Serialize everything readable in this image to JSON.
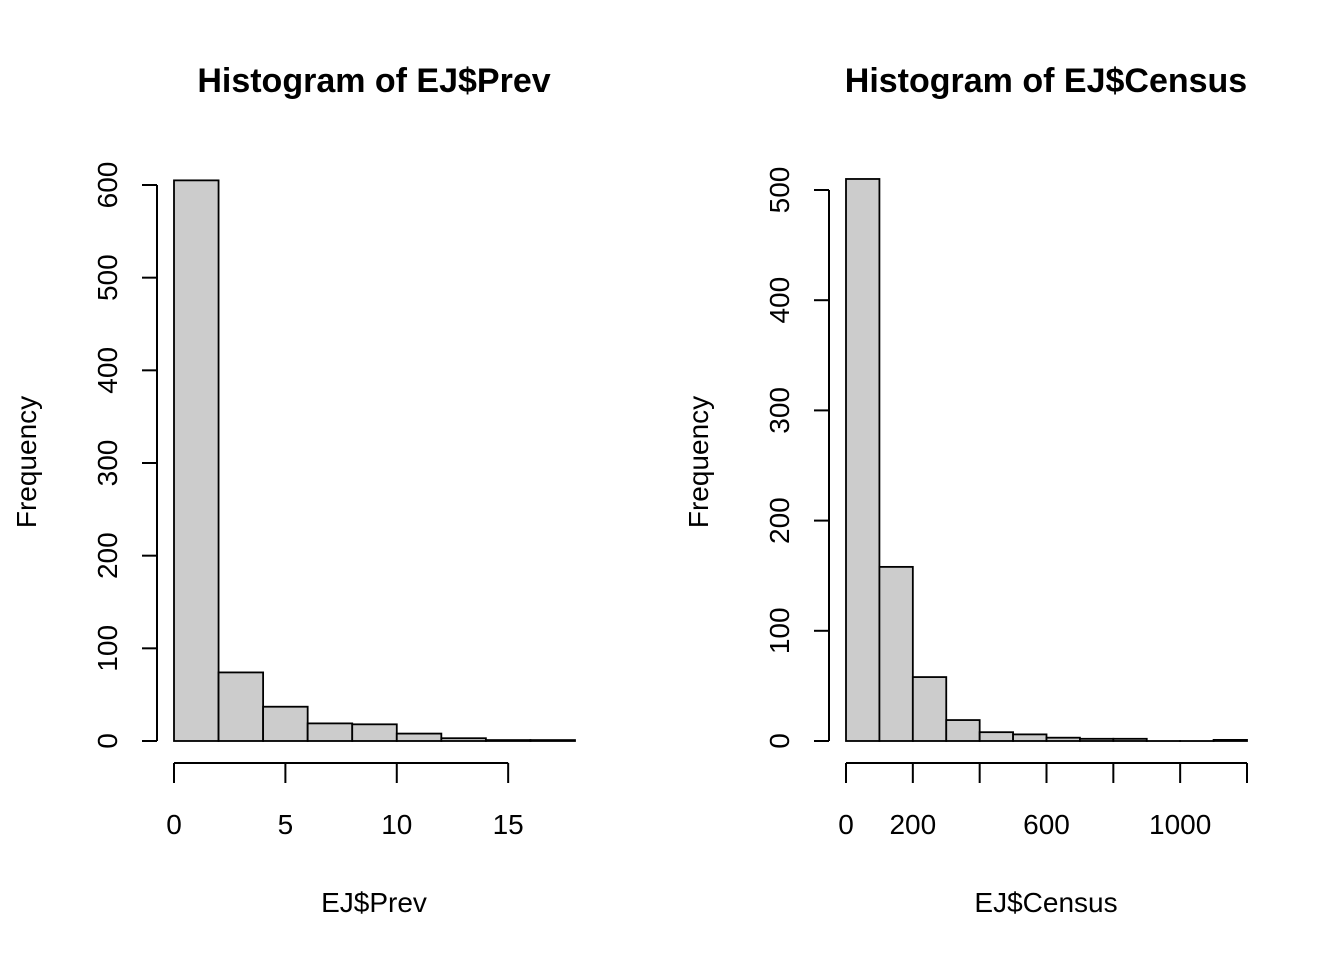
{
  "chart_data": [
    {
      "type": "bar",
      "title": "Histogram of EJ$Prev",
      "xlabel": "EJ$Prev",
      "ylabel": "Frequency",
      "bin_edges": [
        0,
        2,
        4,
        6,
        8,
        10,
        12,
        14,
        16,
        18
      ],
      "values": [
        605,
        74,
        37,
        19,
        18,
        8,
        3,
        1,
        1
      ],
      "xlim": [
        0,
        18
      ],
      "ylim": [
        0,
        600
      ],
      "x_ticks": [
        0,
        5,
        10,
        15
      ],
      "y_ticks": [
        0,
        100,
        200,
        300,
        400,
        500,
        600
      ],
      "bar_color": "#cccccc",
      "grid": false
    },
    {
      "type": "bar",
      "title": "Histogram of EJ$Census",
      "xlabel": "EJ$Census",
      "ylabel": "Frequency",
      "bin_edges": [
        0,
        100,
        200,
        300,
        400,
        500,
        600,
        700,
        800,
        900,
        1000,
        1100,
        1200
      ],
      "values": [
        510,
        158,
        58,
        19,
        8,
        6,
        3,
        2,
        2,
        0,
        0,
        1
      ],
      "xlim": [
        0,
        1200
      ],
      "ylim": [
        0,
        500
      ],
      "x_ticks": [
        0,
        200,
        400,
        600,
        800,
        1000,
        1200
      ],
      "x_tick_labels": [
        "0",
        "200",
        "",
        "600",
        "",
        "1000",
        ""
      ],
      "y_ticks": [
        0,
        100,
        200,
        300,
        400,
        500
      ],
      "bar_color": "#cccccc",
      "grid": false
    }
  ]
}
